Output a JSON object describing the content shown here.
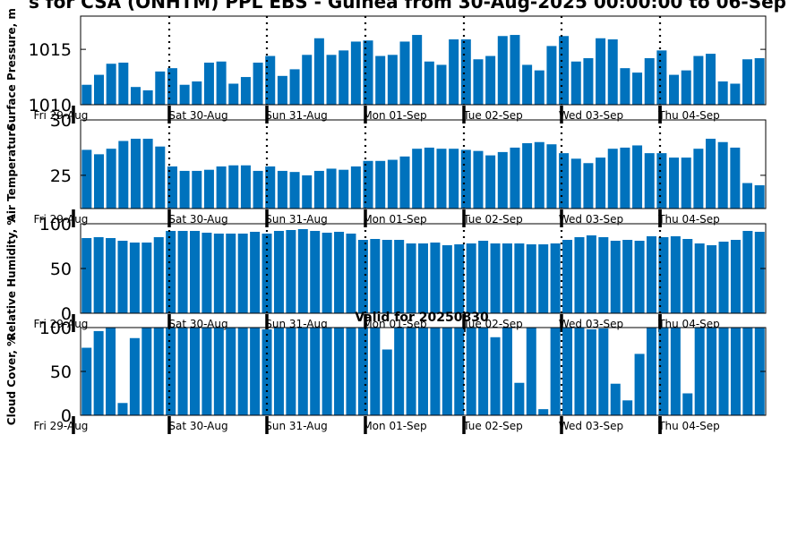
{
  "title": "s for CSA (ONHTM) PPL EBS  - Guinea from 30-Aug-2025 00:00:00 to 06-Sep",
  "valid_label": "Valid for 20250830",
  "bar_color": "#0072bd",
  "chart_data": [
    {
      "type": "bar",
      "ylabel": "Surface Pressure, m",
      "ylim": [
        1010,
        1018
      ],
      "yticks": [
        1010,
        1015
      ],
      "day_ticks": [
        "Fri 29-Aug",
        "Sat 30-Aug",
        "Sun 31-Aug",
        "Mon 01-Sep",
        "Tue 02-Sep",
        "Wed 03-Sep",
        "Thu 04-Sep"
      ],
      "values": [
        1011.8,
        1012.7,
        1013.7,
        1013.8,
        1011.6,
        1011.3,
        1013.0,
        1013.3,
        1011.8,
        1012.1,
        1013.8,
        1013.9,
        1011.9,
        1012.5,
        1013.8,
        1014.4,
        1012.6,
        1013.2,
        1014.5,
        1016.0,
        1014.5,
        1014.9,
        1015.7,
        1015.8,
        1014.4,
        1014.5,
        1015.7,
        1016.3,
        1013.9,
        1013.6,
        1015.9,
        1015.9,
        1014.1,
        1014.4,
        1016.2,
        1016.3,
        1013.6,
        1013.1,
        1015.3,
        1016.2,
        1013.9,
        1014.2,
        1016.0,
        1015.9,
        1013.3,
        1012.9,
        1014.2,
        1014.9,
        1012.7,
        1013.1,
        1014.4,
        1014.6,
        1012.1,
        1011.9,
        1014.1,
        1014.2
      ]
    },
    {
      "type": "bar",
      "ylabel": "Air Temperature",
      "ylim": [
        22,
        30
      ],
      "yticks": [
        25,
        30
      ],
      "day_ticks": [
        "Fri 29-Aug",
        "Sat 30-Aug",
        "Sun 31-Aug",
        "Mon 01-Sep",
        "Tue 02-Sep",
        "Wed 03-Sep",
        "Thu 04-Sep"
      ],
      "values": [
        27.3,
        26.9,
        27.4,
        28.1,
        28.3,
        28.3,
        27.6,
        25.8,
        25.4,
        25.4,
        25.5,
        25.8,
        25.9,
        25.9,
        25.4,
        25.8,
        25.4,
        25.3,
        25.0,
        25.4,
        25.6,
        25.5,
        25.8,
        26.3,
        26.3,
        26.4,
        26.7,
        27.4,
        27.5,
        27.4,
        27.4,
        27.3,
        27.2,
        26.8,
        27.1,
        27.5,
        27.9,
        28.0,
        27.8,
        27.0,
        26.5,
        26.1,
        26.6,
        27.4,
        27.5,
        27.7,
        27.0,
        27.0,
        26.6,
        26.6,
        27.4,
        28.3,
        28.0,
        27.5,
        24.3,
        24.1
      ]
    },
    {
      "type": "bar",
      "ylabel": "Relative Humidity, %",
      "ylim": [
        0,
        100
      ],
      "yticks": [
        0,
        50,
        100
      ],
      "day_ticks": [
        "Fri 29-Aug",
        "Sat 30-Aug",
        "Sun 31-Aug",
        "Mon 01-Sep",
        "Tue 02-Sep",
        "Wed 03-Sep",
        "Thu 04-Sep"
      ],
      "values": [
        84,
        85,
        84,
        81,
        79,
        79,
        85,
        92,
        92,
        92,
        90,
        89,
        89,
        89,
        91,
        89,
        92,
        93,
        94,
        92,
        90,
        91,
        89,
        82,
        83,
        82,
        82,
        78,
        78,
        79,
        76,
        77,
        78,
        81,
        78,
        78,
        78,
        77,
        77,
        78,
        82,
        85,
        87,
        85,
        81,
        82,
        81,
        86,
        85,
        86,
        83,
        78,
        76,
        80,
        82,
        92,
        91
      ]
    },
    {
      "type": "bar",
      "ylabel": "Cloud Cover, %",
      "ylim": [
        0,
        100
      ],
      "yticks": [
        0,
        50,
        100
      ],
      "day_ticks": [
        "Fri 29-Aug",
        "Sat 30-Aug",
        "Sun 31-Aug",
        "Mon 01-Sep",
        "Tue 02-Sep",
        "Wed 03-Sep",
        "Thu 04-Sep"
      ],
      "values": [
        77,
        96,
        100,
        14,
        88,
        100,
        100,
        100,
        100,
        100,
        100,
        100,
        100,
        100,
        100,
        98,
        100,
        100,
        100,
        100,
        100,
        100,
        100,
        100,
        100,
        75,
        100,
        100,
        100,
        100,
        100,
        100,
        100,
        100,
        89,
        100,
        37,
        100,
        7,
        100,
        100,
        100,
        98,
        99,
        36,
        17,
        70,
        100,
        100,
        100,
        25,
        100,
        100,
        100,
        100,
        100,
        100
      ]
    }
  ]
}
